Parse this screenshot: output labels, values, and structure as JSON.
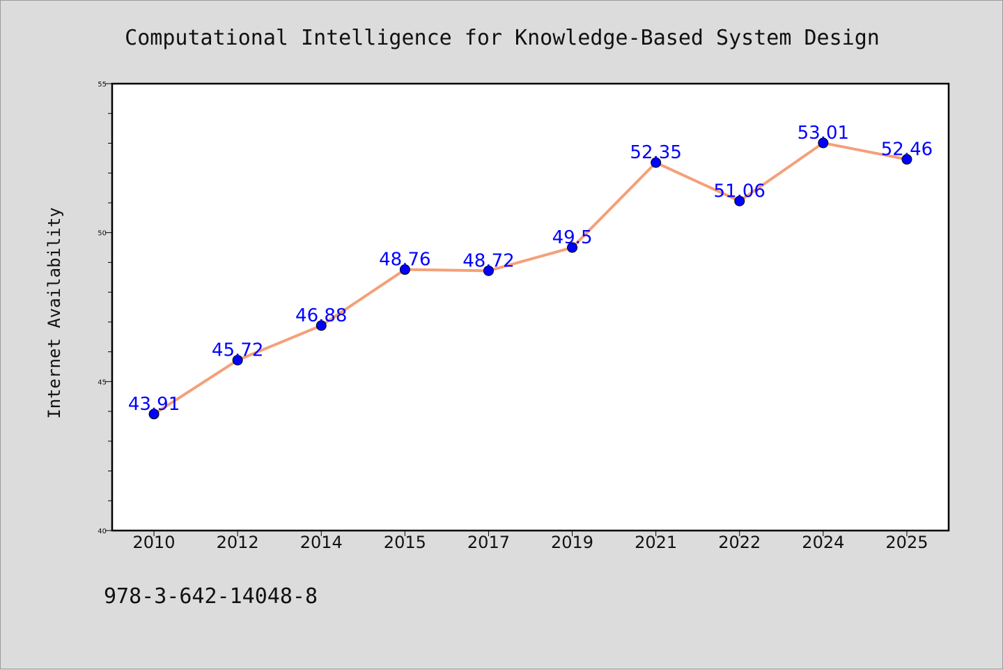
{
  "chart_data": {
    "type": "line",
    "title": "Computational Intelligence for Knowledge-Based System Design",
    "xlabel": "",
    "ylabel": "Internet Availability",
    "categories": [
      "2010",
      "2012",
      "2014",
      "2015",
      "2017",
      "2019",
      "2021",
      "2022",
      "2024",
      "2025"
    ],
    "series": [
      {
        "values": [
          43.91,
          45.72,
          46.88,
          48.76,
          48.72,
          49.5,
          52.35,
          51.06,
          53.01,
          52.46
        ],
        "labels": [
          "43.91",
          "45.72",
          "46.88",
          "48.76",
          "48.72",
          "49.5",
          "52.35",
          "51.06",
          "53.01",
          "52.46"
        ]
      }
    ],
    "ylim": [
      40,
      55
    ],
    "yticks": [
      40,
      45,
      50,
      55
    ],
    "grid": false,
    "line_color": "#f4a07a",
    "marker_color": "#0000ff",
    "label_color": "#0000ff",
    "background": "#dcdcdc",
    "plot_background": "#ffffff"
  },
  "footer": {
    "isbn": "978-3-642-14048-8"
  }
}
